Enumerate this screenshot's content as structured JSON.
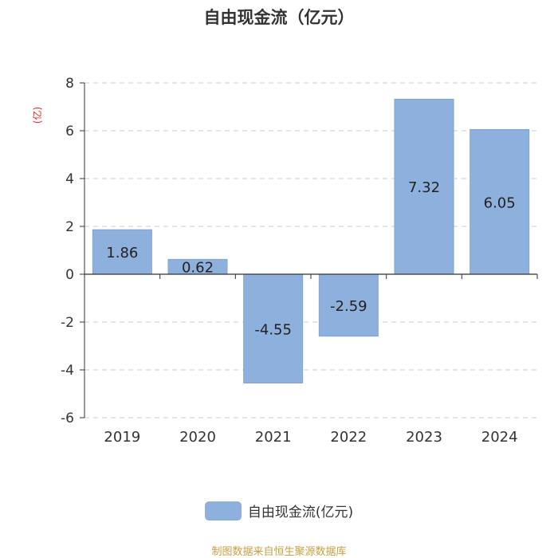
{
  "chart_data": {
    "type": "bar",
    "title": "自由现金流（亿元）",
    "ylabel": "(亿)",
    "categories": [
      "2019",
      "2020",
      "2021",
      "2022",
      "2023",
      "2024"
    ],
    "series": [
      {
        "name": "自由现金流(亿元)",
        "values": [
          1.86,
          0.62,
          -4.55,
          -2.59,
          7.32,
          6.05
        ]
      }
    ],
    "data_labels": [
      "1.86",
      "0.62",
      "-4.55",
      "-2.59",
      "7.32",
      "6.05"
    ],
    "yticks": [
      8,
      6,
      4,
      2,
      0,
      -2,
      -4,
      -6
    ],
    "ylim": [
      -6,
      8
    ],
    "grid": true,
    "legend_position": "bottom",
    "colors": {
      "bar": "#8eb0dc",
      "grid": "#cccccc",
      "axis": "#333333"
    }
  },
  "footer": {
    "source": "制图数据来自恒生聚源数据库"
  }
}
